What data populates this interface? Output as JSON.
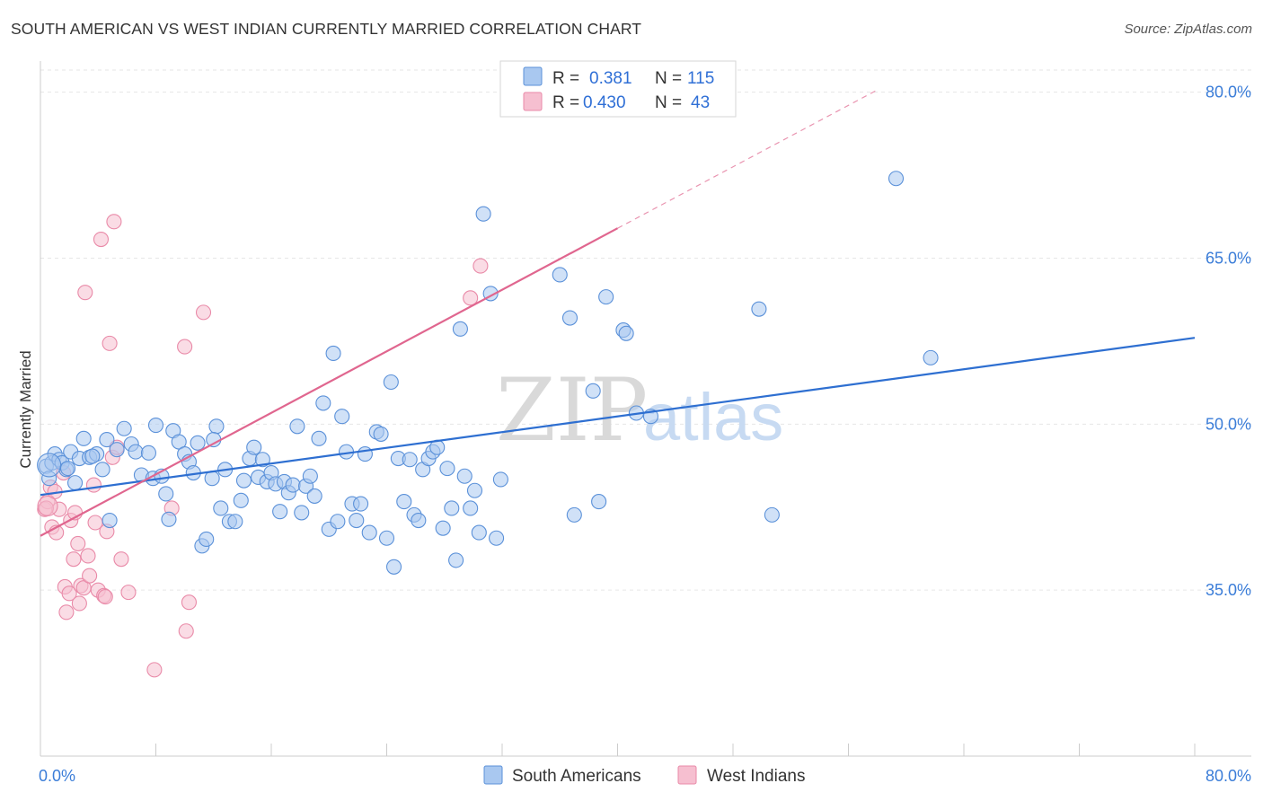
{
  "header": {
    "title": "SOUTH AMERICAN VS WEST INDIAN CURRENTLY MARRIED CORRELATION CHART",
    "source": "Source: ZipAtlas.com"
  },
  "colors": {
    "blue_fill": "#a9c8f0",
    "blue_stroke": "#5b91d9",
    "blue_line": "#2e6fd1",
    "pink_fill": "#f6bfd0",
    "pink_stroke": "#e98aa8",
    "pink_line": "#e0668f",
    "grid": "#e6e6e6",
    "axis_text": "#3b7dd8"
  },
  "chart_data": {
    "type": "scatter",
    "title": "SOUTH AMERICAN VS WEST INDIAN CURRENTLY MARRIED CORRELATION CHART",
    "xlabel": "",
    "ylabel": "Currently Married",
    "xlim": [
      0,
      80
    ],
    "ylim": [
      20,
      82
    ],
    "x_tick_labels": [
      "0.0%",
      "80.0%"
    ],
    "y_ticks": [
      35,
      50,
      65,
      80
    ],
    "y_tick_labels": [
      "35.0%",
      "50.0%",
      "65.0%",
      "80.0%"
    ],
    "grid": true,
    "legend": {
      "position": "top-center",
      "entries": [
        {
          "r_label": "R =",
          "r_value": "0.381",
          "n_label": "N =",
          "n_value": "115"
        },
        {
          "r_label": "R =",
          "r_value": "0.430",
          "n_label": "N =",
          "n_value": "43"
        }
      ]
    },
    "bottom_legend": [
      "South Americans",
      "West Indians"
    ],
    "watermark": "ZIPatlas",
    "series": [
      {
        "name": "South Americans",
        "color": "blue",
        "trend": {
          "x1": 0,
          "y1": 43.6,
          "x2": 80,
          "y2": 57.8
        },
        "points": [
          [
            0.4,
            46.2
          ],
          [
            0.6,
            45.1
          ],
          [
            0.8,
            46.5
          ],
          [
            1.0,
            47.3
          ],
          [
            1.3,
            46.8
          ],
          [
            1.5,
            46.5
          ],
          [
            1.8,
            45.9
          ],
          [
            2.1,
            47.5
          ],
          [
            2.4,
            44.7
          ],
          [
            2.7,
            46.9
          ],
          [
            3.0,
            48.7
          ],
          [
            3.4,
            47.0
          ],
          [
            3.9,
            47.3
          ],
          [
            4.3,
            45.9
          ],
          [
            4.6,
            48.6
          ],
          [
            4.8,
            41.3
          ],
          [
            5.3,
            47.7
          ],
          [
            5.8,
            49.6
          ],
          [
            6.3,
            48.2
          ],
          [
            6.6,
            47.5
          ],
          [
            7.0,
            45.4
          ],
          [
            7.5,
            47.4
          ],
          [
            7.8,
            45.1
          ],
          [
            8.0,
            49.9
          ],
          [
            8.4,
            45.3
          ],
          [
            8.7,
            43.7
          ],
          [
            8.9,
            41.4
          ],
          [
            9.2,
            49.4
          ],
          [
            9.6,
            48.4
          ],
          [
            10.0,
            47.3
          ],
          [
            10.3,
            46.6
          ],
          [
            10.6,
            45.6
          ],
          [
            10.9,
            48.3
          ],
          [
            11.2,
            39.0
          ],
          [
            11.5,
            39.6
          ],
          [
            11.9,
            45.1
          ],
          [
            12.2,
            49.8
          ],
          [
            12.5,
            42.4
          ],
          [
            12.8,
            45.9
          ],
          [
            13.1,
            41.2
          ],
          [
            13.5,
            41.2
          ],
          [
            13.9,
            43.1
          ],
          [
            14.1,
            44.9
          ],
          [
            14.5,
            46.9
          ],
          [
            14.8,
            47.9
          ],
          [
            15.1,
            45.2
          ],
          [
            15.4,
            46.8
          ],
          [
            15.7,
            44.8
          ],
          [
            16.0,
            45.6
          ],
          [
            16.3,
            44.6
          ],
          [
            16.6,
            42.1
          ],
          [
            16.9,
            44.8
          ],
          [
            17.2,
            43.8
          ],
          [
            17.5,
            44.5
          ],
          [
            17.8,
            49.8
          ],
          [
            18.1,
            42.0
          ],
          [
            18.4,
            44.4
          ],
          [
            18.7,
            45.3
          ],
          [
            19.0,
            43.5
          ],
          [
            19.3,
            48.7
          ],
          [
            19.6,
            51.9
          ],
          [
            20.0,
            40.5
          ],
          [
            20.3,
            56.4
          ],
          [
            20.6,
            41.2
          ],
          [
            20.9,
            50.7
          ],
          [
            21.2,
            47.5
          ],
          [
            21.6,
            42.8
          ],
          [
            21.9,
            41.3
          ],
          [
            22.2,
            42.8
          ],
          [
            22.5,
            47.3
          ],
          [
            22.8,
            40.2
          ],
          [
            23.3,
            49.3
          ],
          [
            23.6,
            49.1
          ],
          [
            24.0,
            39.7
          ],
          [
            24.3,
            53.8
          ],
          [
            24.5,
            37.1
          ],
          [
            24.8,
            46.9
          ],
          [
            25.2,
            43.0
          ],
          [
            25.6,
            46.8
          ],
          [
            25.9,
            41.8
          ],
          [
            26.2,
            41.3
          ],
          [
            26.5,
            45.9
          ],
          [
            26.9,
            46.9
          ],
          [
            27.2,
            47.5
          ],
          [
            27.5,
            47.9
          ],
          [
            27.9,
            40.6
          ],
          [
            28.2,
            46.0
          ],
          [
            28.5,
            42.4
          ],
          [
            28.8,
            37.7
          ],
          [
            29.1,
            58.6
          ],
          [
            29.4,
            45.3
          ],
          [
            29.8,
            42.4
          ],
          [
            30.1,
            44.0
          ],
          [
            30.4,
            40.2
          ],
          [
            30.7,
            69.0
          ],
          [
            31.2,
            61.8
          ],
          [
            31.6,
            39.7
          ],
          [
            31.9,
            45.0
          ],
          [
            36.0,
            63.5
          ],
          [
            36.7,
            59.6
          ],
          [
            37.0,
            41.8
          ],
          [
            38.3,
            53.0
          ],
          [
            38.7,
            43.0
          ],
          [
            39.2,
            61.5
          ],
          [
            40.4,
            58.5
          ],
          [
            40.6,
            58.2
          ],
          [
            41.3,
            51.0
          ],
          [
            42.3,
            50.7
          ],
          [
            49.8,
            60.4
          ],
          [
            50.7,
            41.8
          ],
          [
            59.3,
            72.2
          ],
          [
            61.7,
            56.0
          ],
          [
            1.9,
            46.0
          ],
          [
            3.6,
            47.1
          ],
          [
            12.0,
            48.6
          ]
        ]
      },
      {
        "name": "West Indians",
        "color": "pink",
        "trend": {
          "x1": 0,
          "y1": 39.9,
          "x2": 40,
          "y2": 67.7,
          "dash_to_x": 58,
          "dash_to_y": 80.2
        },
        "points": [
          [
            0.3,
            42.3
          ],
          [
            0.5,
            43.0
          ],
          [
            0.7,
            44.3
          ],
          [
            0.8,
            40.7
          ],
          [
            1.0,
            43.9
          ],
          [
            1.1,
            40.2
          ],
          [
            1.3,
            42.3
          ],
          [
            1.6,
            45.6
          ],
          [
            1.7,
            35.3
          ],
          [
            1.8,
            33.0
          ],
          [
            2.0,
            34.7
          ],
          [
            2.1,
            41.3
          ],
          [
            2.3,
            37.8
          ],
          [
            2.4,
            42.0
          ],
          [
            2.6,
            39.2
          ],
          [
            2.7,
            33.8
          ],
          [
            2.8,
            35.4
          ],
          [
            3.0,
            35.2
          ],
          [
            3.1,
            61.9
          ],
          [
            3.3,
            38.1
          ],
          [
            3.4,
            36.3
          ],
          [
            3.7,
            44.5
          ],
          [
            3.8,
            41.1
          ],
          [
            4.0,
            35.0
          ],
          [
            4.2,
            66.7
          ],
          [
            4.4,
            34.5
          ],
          [
            4.5,
            34.4
          ],
          [
            4.6,
            40.3
          ],
          [
            4.8,
            57.3
          ],
          [
            5.0,
            47.0
          ],
          [
            5.1,
            68.3
          ],
          [
            5.3,
            47.9
          ],
          [
            5.6,
            37.8
          ],
          [
            6.1,
            34.8
          ],
          [
            7.9,
            27.8
          ],
          [
            9.1,
            42.4
          ],
          [
            10.0,
            57.0
          ],
          [
            10.1,
            31.3
          ],
          [
            10.3,
            33.9
          ],
          [
            11.3,
            60.1
          ],
          [
            29.8,
            61.4
          ],
          [
            30.5,
            64.3
          ],
          [
            0.4,
            42.4
          ]
        ]
      }
    ]
  }
}
